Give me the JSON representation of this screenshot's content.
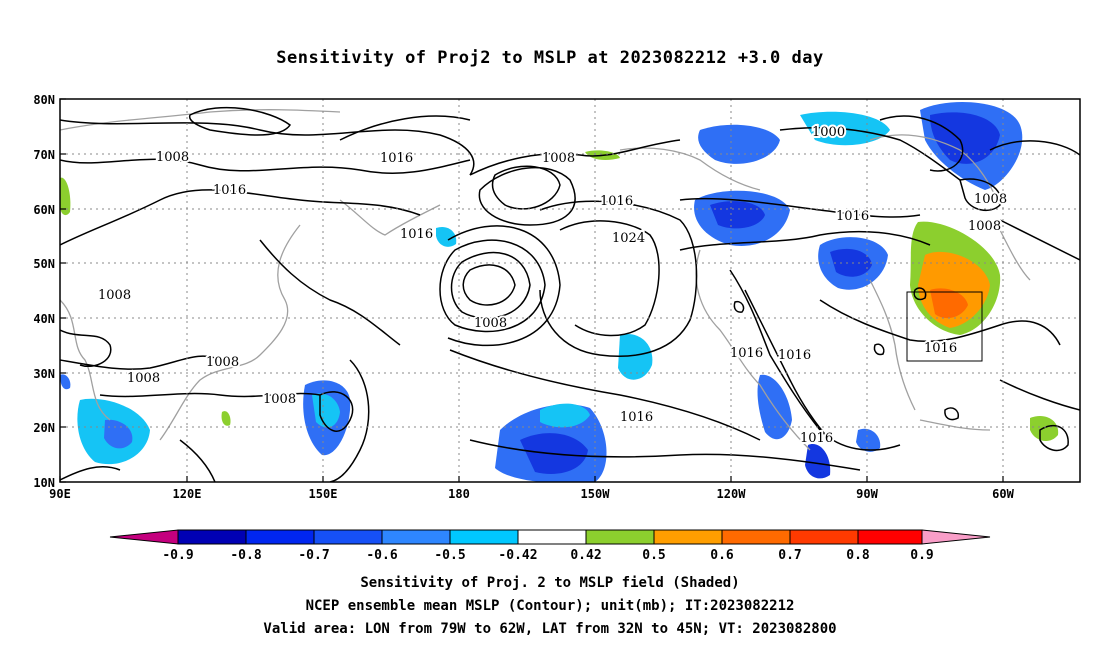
{
  "title": "Sensitivity of Proj2 to MSLP at 2023082212 +3.0 day",
  "y_ticks": [
    "80N",
    "70N",
    "60N",
    "50N",
    "40N",
    "30N",
    "20N",
    "10N"
  ],
  "x_ticks": [
    "90E",
    "120E",
    "150E",
    "180",
    "150W",
    "120W",
    "90W",
    "60W"
  ],
  "contour_labels": [
    "1008",
    "1016",
    "1016",
    "1008",
    "1000",
    "1016",
    "1016",
    "1024",
    "1016",
    "1008",
    "1008",
    "1008",
    "1008",
    "1008",
    "1008",
    "1008",
    "1016",
    "1016",
    "1016",
    "1016"
  ],
  "colorbar": {
    "labels": [
      "-0.9",
      "-0.8",
      "-0.7",
      "-0.6",
      "-0.5",
      "-0.42",
      "0.42",
      "0.5",
      "0.6",
      "0.7",
      "0.8",
      "0.9"
    ],
    "colors": [
      "#c4007e",
      "#0000b4",
      "#0026f0",
      "#1650f6",
      "#2e86ff",
      "#00c8ff",
      "#ffffff",
      "#8ccf2e",
      "#ff9e00",
      "#ff6a00",
      "#ff3a00",
      "#ff0000",
      "#f99ec8"
    ]
  },
  "shading_colors": {
    "lightblue": "#15c4f5",
    "blue": "#2f6ff5",
    "darkblue": "#1437e0",
    "green": "#8ccf2e",
    "orange": "#ff9a00",
    "darkorange": "#ff6a00"
  },
  "captions": [
    "Sensitivity of Proj. 2 to MSLP field (Shaded)",
    "NCEP ensemble mean MSLP (Contour); unit(mb); IT:2023082212",
    "Valid area: LON from 79W to 62W, LAT from 32N to 45N; VT: 2023082800"
  ]
}
